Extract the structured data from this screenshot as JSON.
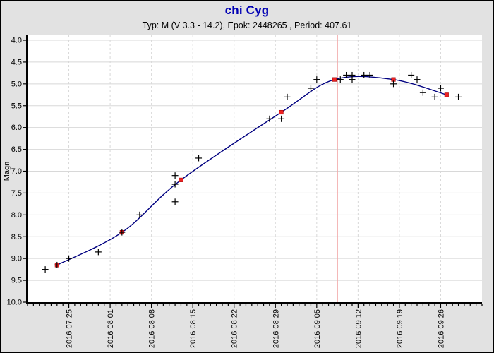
{
  "header": {
    "title": "chi Cyg",
    "subtitle": "Typ: M (V 3.3 - 14.2), Epok: 2448265 , Period: 407.61"
  },
  "colors": {
    "background": "#e2e2e2",
    "plot_background": "#ffffff",
    "title_text": "#0000b4",
    "subtitle_text": "#000000",
    "axis": "#000000",
    "tick_label": "#000000",
    "grid": "#d8d8d8",
    "fit_curve": "#000080",
    "plus_marker": "#000000",
    "mean_marker": "#ee2222",
    "today_line": "#f2aaaa"
  },
  "chart_data": {
    "type": "scatter",
    "title": "chi Cyg",
    "subtitle": "Typ: M (V 3.3 - 14.2), Epok: 2448265 , Period: 407.61",
    "xlabel": "",
    "ylabel": "Magn",
    "ylim": [
      4.0,
      10.0
    ],
    "y_axis_inverted": true,
    "y_tick_step": 0.5,
    "y_tick_labels": [
      "4.0",
      "4.5",
      "5.0",
      "5.5",
      "6.0",
      "6.5",
      "7.0",
      "7.5",
      "8.0",
      "8.5",
      "9.0",
      "9.5",
      "10.0"
    ],
    "xlim": [
      "2016-07-18",
      "2016-10-03"
    ],
    "x_minor_tick_days": 1,
    "x_ticks": [
      {
        "date": "2016-07-25",
        "label": "2016 07 25"
      },
      {
        "date": "2016-08-01",
        "label": "2016 08 01"
      },
      {
        "date": "2016-08-08",
        "label": "2016 08 08"
      },
      {
        "date": "2016-08-15",
        "label": "2016 08 15"
      },
      {
        "date": "2016-08-22",
        "label": "2016 08 22"
      },
      {
        "date": "2016-08-29",
        "label": "2016 08 29"
      },
      {
        "date": "2016-09-05",
        "label": "2016 09 05"
      },
      {
        "date": "2016-09-12",
        "label": "2016 09 12"
      },
      {
        "date": "2016-09-19",
        "label": "2016 09 19"
      },
      {
        "date": "2016-09-26",
        "label": "2016 09 26"
      }
    ],
    "grid": true,
    "today_line": {
      "date": "2016-09-08"
    },
    "series": [
      {
        "name": "plus_markers",
        "marker": "plus",
        "points": [
          {
            "date": "2016-07-21",
            "mag": 9.25
          },
          {
            "date": "2016-07-23",
            "mag": 9.15
          },
          {
            "date": "2016-07-25",
            "mag": 9.0
          },
          {
            "date": "2016-07-30",
            "mag": 8.85
          },
          {
            "date": "2016-08-03",
            "mag": 8.4
          },
          {
            "date": "2016-08-06",
            "mag": 8.0
          },
          {
            "date": "2016-08-12",
            "mag": 7.1
          },
          {
            "date": "2016-08-12",
            "mag": 7.3
          },
          {
            "date": "2016-08-12",
            "mag": 7.7
          },
          {
            "date": "2016-08-16",
            "mag": 6.7
          },
          {
            "date": "2016-08-28",
            "mag": 5.8
          },
          {
            "date": "2016-08-30",
            "mag": 5.8
          },
          {
            "date": "2016-08-31",
            "mag": 5.3
          },
          {
            "date": "2016-09-04",
            "mag": 5.1
          },
          {
            "date": "2016-09-05",
            "mag": 4.9
          },
          {
            "date": "2016-09-09",
            "mag": 4.9
          },
          {
            "date": "2016-09-10",
            "mag": 4.8
          },
          {
            "date": "2016-09-11",
            "mag": 4.8
          },
          {
            "date": "2016-09-11",
            "mag": 4.9
          },
          {
            "date": "2016-09-13",
            "mag": 4.8
          },
          {
            "date": "2016-09-14",
            "mag": 4.8
          },
          {
            "date": "2016-09-18",
            "mag": 5.0
          },
          {
            "date": "2016-09-21",
            "mag": 4.8
          },
          {
            "date": "2016-09-22",
            "mag": 4.9
          },
          {
            "date": "2016-09-23",
            "mag": 5.2
          },
          {
            "date": "2016-09-25",
            "mag": 5.3
          },
          {
            "date": "2016-09-26",
            "mag": 5.1
          },
          {
            "date": "2016-09-29",
            "mag": 5.3
          }
        ]
      },
      {
        "name": "red_squares",
        "marker": "square",
        "points": [
          {
            "date": "2016-07-23",
            "mag": 9.15
          },
          {
            "date": "2016-08-03",
            "mag": 8.4
          },
          {
            "date": "2016-08-13",
            "mag": 7.2
          },
          {
            "date": "2016-08-30",
            "mag": 5.65
          },
          {
            "date": "2016-09-08",
            "mag": 4.9
          },
          {
            "date": "2016-09-18",
            "mag": 4.9
          },
          {
            "date": "2016-09-27",
            "mag": 5.25
          }
        ]
      }
    ],
    "fit_curve": {
      "through": "red_squares",
      "style": "smooth-spline"
    }
  }
}
